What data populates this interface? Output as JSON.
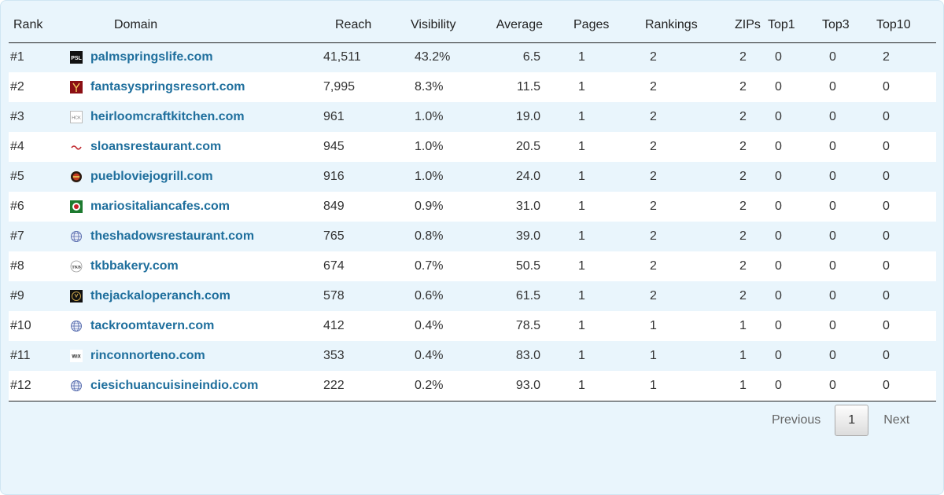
{
  "table": {
    "headers": {
      "rank": "Rank",
      "domain": "Domain",
      "reach": "Reach",
      "visibility": "Visibility",
      "average": "Average",
      "pages": "Pages",
      "rankings": "Rankings",
      "zips": "ZIPs",
      "top1": "Top1",
      "top3": "Top3",
      "top10": "Top10"
    },
    "rows": [
      {
        "rank": "#1",
        "domain": "palmspringslife.com",
        "icon": "psl-logo-icon",
        "reach": "41,511",
        "visibility": "43.2%",
        "average": "6.5",
        "pages": "1",
        "rankings": "2",
        "zips": "2",
        "top1": "0",
        "top3": "0",
        "top10": "2"
      },
      {
        "rank": "#2",
        "domain": "fantasyspringsresort.com",
        "icon": "fantasy-springs-logo-icon",
        "reach": "7,995",
        "visibility": "8.3%",
        "average": "11.5",
        "pages": "1",
        "rankings": "2",
        "zips": "2",
        "top1": "0",
        "top3": "0",
        "top10": "0"
      },
      {
        "rank": "#3",
        "domain": "heirloomcraftkitchen.com",
        "icon": "hck-logo-icon",
        "reach": "961",
        "visibility": "1.0%",
        "average": "19.0",
        "pages": "1",
        "rankings": "2",
        "zips": "2",
        "top1": "0",
        "top3": "0",
        "top10": "0"
      },
      {
        "rank": "#4",
        "domain": "sloansrestaurant.com",
        "icon": "sloans-logo-icon",
        "reach": "945",
        "visibility": "1.0%",
        "average": "20.5",
        "pages": "1",
        "rankings": "2",
        "zips": "2",
        "top1": "0",
        "top3": "0",
        "top10": "0"
      },
      {
        "rank": "#5",
        "domain": "puebloviejogrill.com",
        "icon": "pueblo-viejo-logo-icon",
        "reach": "916",
        "visibility": "1.0%",
        "average": "24.0",
        "pages": "1",
        "rankings": "2",
        "zips": "2",
        "top1": "0",
        "top3": "0",
        "top10": "0"
      },
      {
        "rank": "#6",
        "domain": "mariositaliancafes.com",
        "icon": "marios-logo-icon",
        "reach": "849",
        "visibility": "0.9%",
        "average": "31.0",
        "pages": "1",
        "rankings": "2",
        "zips": "2",
        "top1": "0",
        "top3": "0",
        "top10": "0"
      },
      {
        "rank": "#7",
        "domain": "theshadowsrestaurant.com",
        "icon": "globe-icon",
        "reach": "765",
        "visibility": "0.8%",
        "average": "39.0",
        "pages": "1",
        "rankings": "2",
        "zips": "2",
        "top1": "0",
        "top3": "0",
        "top10": "0"
      },
      {
        "rank": "#8",
        "domain": "tkbbakery.com",
        "icon": "tkb-logo-icon",
        "reach": "674",
        "visibility": "0.7%",
        "average": "50.5",
        "pages": "1",
        "rankings": "2",
        "zips": "2",
        "top1": "0",
        "top3": "0",
        "top10": "0"
      },
      {
        "rank": "#9",
        "domain": "thejackaloperanch.com",
        "icon": "jackalope-logo-icon",
        "reach": "578",
        "visibility": "0.6%",
        "average": "61.5",
        "pages": "1",
        "rankings": "2",
        "zips": "2",
        "top1": "0",
        "top3": "0",
        "top10": "0"
      },
      {
        "rank": "#10",
        "domain": "tackroomtavern.com",
        "icon": "globe-icon",
        "reach": "412",
        "visibility": "0.4%",
        "average": "78.5",
        "pages": "1",
        "rankings": "1",
        "zips": "1",
        "top1": "0",
        "top3": "0",
        "top10": "0"
      },
      {
        "rank": "#11",
        "domain": "rinconnorteno.com",
        "icon": "wix-logo-icon",
        "reach": "353",
        "visibility": "0.4%",
        "average": "83.0",
        "pages": "1",
        "rankings": "1",
        "zips": "1",
        "top1": "0",
        "top3": "0",
        "top10": "0"
      },
      {
        "rank": "#12",
        "domain": "ciesichuancuisineindio.com",
        "icon": "globe-icon",
        "reach": "222",
        "visibility": "0.2%",
        "average": "93.0",
        "pages": "1",
        "rankings": "1",
        "zips": "1",
        "top1": "0",
        "top3": "0",
        "top10": "0"
      }
    ]
  },
  "pagination": {
    "previous": "Previous",
    "current_page": "1",
    "next": "Next"
  },
  "colors": {
    "panel_bg": "#e9f5fc",
    "link": "#1f6f9d",
    "row_alt": "#ffffff"
  },
  "favicon_text": {
    "psl": "PSL",
    "hck": "HCK",
    "wix": "WiX",
    "tkb": "TKB"
  }
}
